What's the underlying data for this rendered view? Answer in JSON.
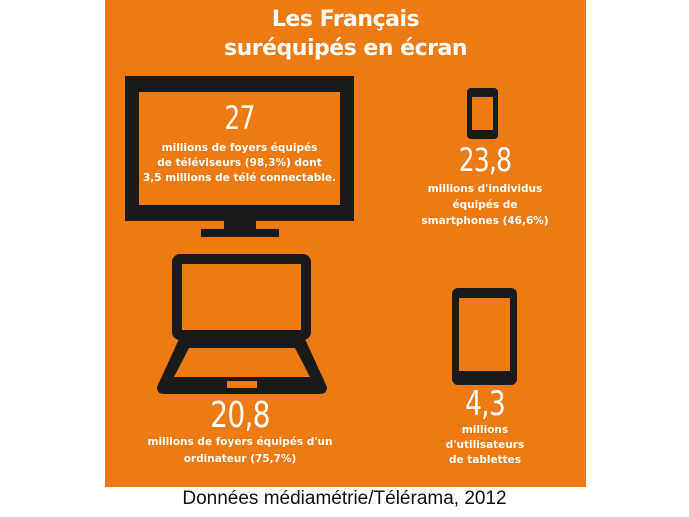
{
  "colors": {
    "background_orange": "#ed7a12",
    "icon_dark": "#1a1a1a",
    "text_white": "#ffffff"
  },
  "title": {
    "line1": "Les Français",
    "line2": "suréquipés en écran"
  },
  "television": {
    "icon": "tv-icon",
    "number": "27",
    "lines": [
      "millions de foyers équipés",
      "de téléviseurs (98,3%) dont",
      "3,5 millions de télé connectable."
    ]
  },
  "smartphone": {
    "icon": "smartphone-icon",
    "number": "23,8",
    "lines": [
      "millions d'individus",
      "équipés de",
      "smartphones (46,6%)"
    ]
  },
  "computer": {
    "icon": "laptop-icon",
    "number": "20,8",
    "lines": [
      "millions de foyers équipés d'un",
      "ordinateur (75,7%)"
    ]
  },
  "tablet": {
    "icon": "tablet-icon",
    "number": "4,3",
    "lines": [
      "millions",
      "d'utilisateurs",
      "de tablettes"
    ]
  },
  "caption": "Données médiamétrie/Télérama, 2012"
}
